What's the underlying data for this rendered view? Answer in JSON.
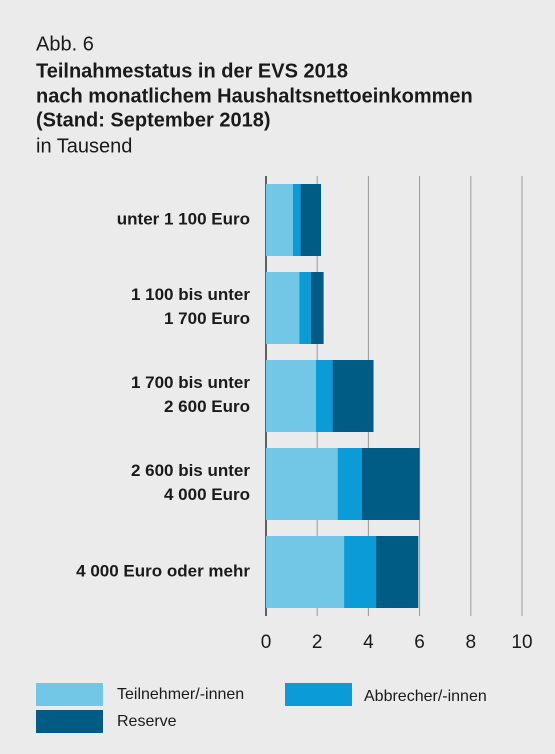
{
  "chart_data": {
    "type": "bar",
    "orientation": "horizontal",
    "stacked": true,
    "label": "Abb. 6",
    "title": [
      "Teilnahmestatus in der EVS 2018",
      "nach monatlichem Haushaltsnettoeinkommen",
      "(Stand: September 2018)"
    ],
    "subtitle": "in Tausend",
    "categories": [
      "unter 1 100 Euro",
      "1 100 bis unter\n1 700 Euro",
      "1 700 bis unter\n2 600 Euro",
      "2 600 bis unter\n4 000 Euro",
      "4 000 Euro oder mehr"
    ],
    "series": [
      {
        "name": "Teilnehmer/-innen",
        "color": "#72c6e6",
        "values": [
          1.05,
          1.3,
          1.95,
          2.8,
          3.05
        ]
      },
      {
        "name": "Abbrecher/-innen",
        "color": "#0b9bd6",
        "values": [
          0.3,
          0.45,
          0.65,
          0.95,
          1.25
        ]
      },
      {
        "name": "Reserve",
        "color": "#005c85",
        "values": [
          0.8,
          0.5,
          1.6,
          2.25,
          1.65
        ]
      }
    ],
    "xlim": [
      0,
      10
    ],
    "xticks": [
      0,
      2,
      4,
      6,
      8,
      10
    ],
    "grid": true
  }
}
